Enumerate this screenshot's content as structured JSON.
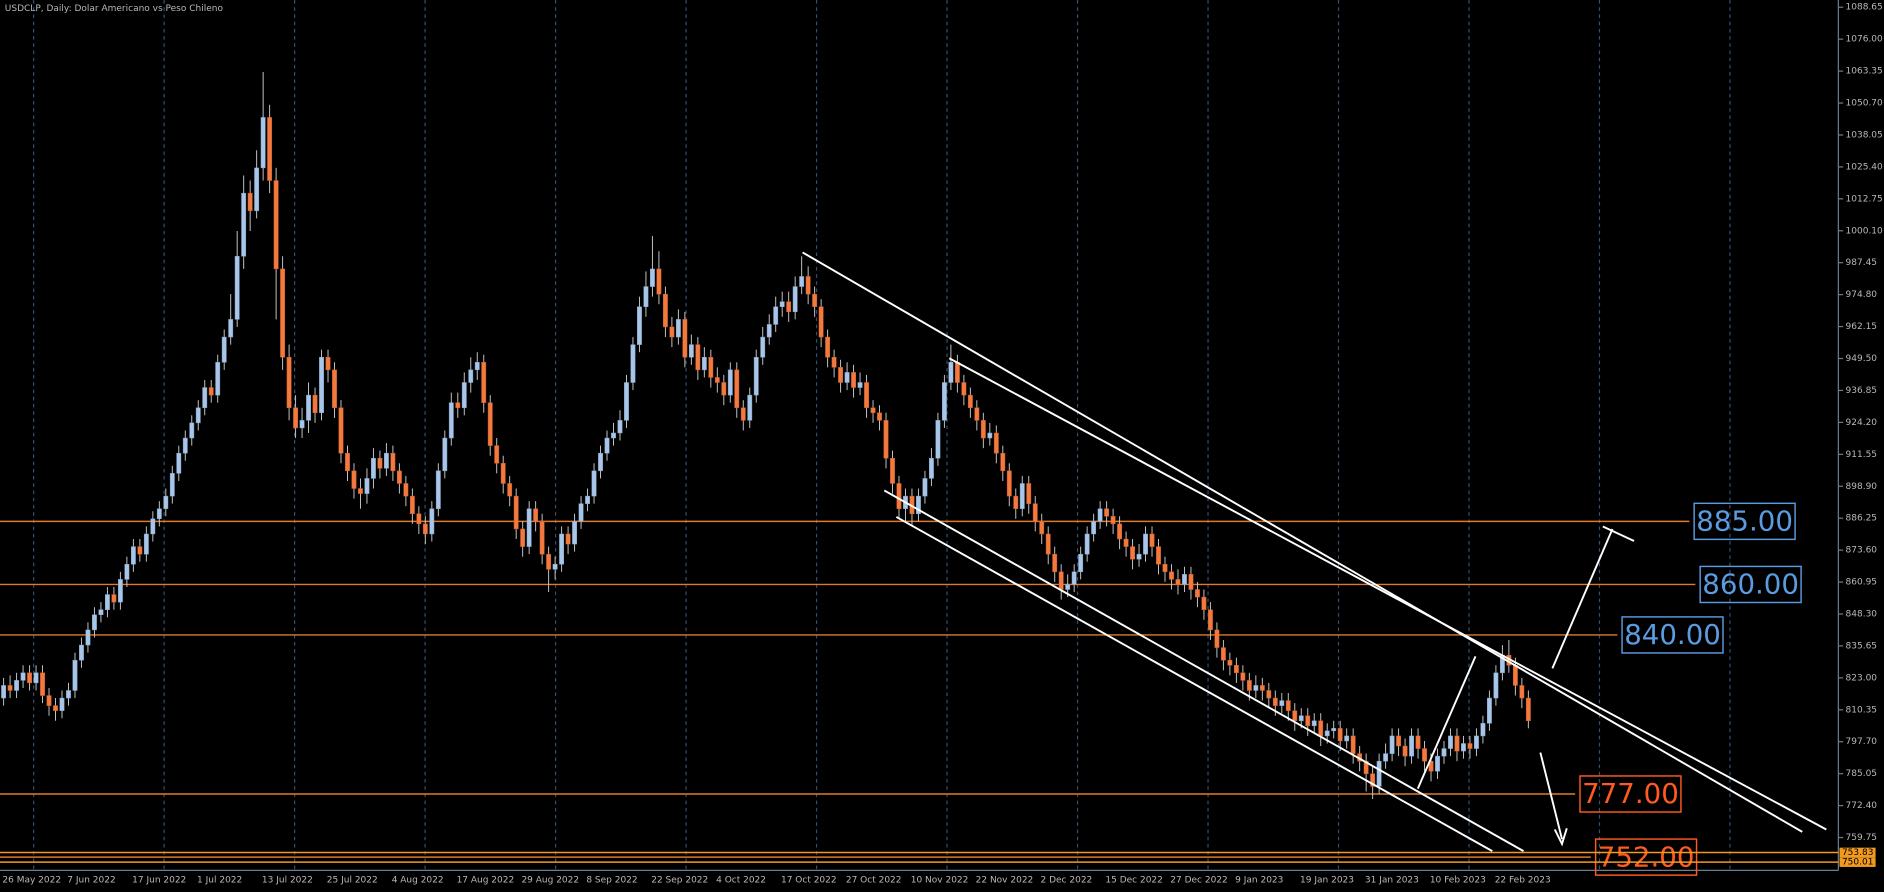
{
  "chart_data": {
    "type": "candlestick",
    "title": "USDCLP, Daily:  Dolar Americano vs Peso Chileno",
    "x_labels": [
      "26 May 2022",
      "7 Jun 2022",
      "17 Jun 2022",
      "1 Jul 2022",
      "13 Jul 2022",
      "25 Jul 2022",
      "4 Aug 2022",
      "17 Aug 2022",
      "29 Aug 2022",
      "8 Sep 2022",
      "22 Sep 2022",
      "4 Oct 2022",
      "17 Oct 2022",
      "27 Oct 2022",
      "10 Nov 2022",
      "22 Nov 2022",
      "2 Dec 2022",
      "15 Dec 2022",
      "27 Dec 2022",
      "9 Jan 2023",
      "19 Jan 2023",
      "31 Jan 2023",
      "10 Feb 2023",
      "22 Feb 2023"
    ],
    "candles": [
      [
        815,
        823,
        812,
        820
      ],
      [
        820,
        824,
        815,
        818
      ],
      [
        818,
        825,
        815,
        822
      ],
      [
        822,
        828,
        819,
        825
      ],
      [
        825,
        828,
        818,
        821
      ],
      [
        821,
        828,
        818,
        825
      ],
      [
        825,
        828,
        813,
        816
      ],
      [
        816,
        819,
        808,
        812
      ],
      [
        812,
        815,
        806,
        810
      ],
      [
        810,
        818,
        807,
        815
      ],
      [
        815,
        821,
        812,
        818
      ],
      [
        818,
        833,
        815,
        830
      ],
      [
        830,
        839,
        827,
        836
      ],
      [
        836,
        845,
        833,
        842
      ],
      [
        842,
        851,
        839,
        848
      ],
      [
        848,
        853,
        845,
        850
      ],
      [
        850,
        859,
        847,
        856
      ],
      [
        856,
        859,
        850,
        853
      ],
      [
        853,
        865,
        850,
        862
      ],
      [
        862,
        871,
        859,
        868
      ],
      [
        868,
        878,
        865,
        875
      ],
      [
        875,
        878,
        869,
        872
      ],
      [
        872,
        883,
        869,
        880
      ],
      [
        880,
        889,
        877,
        886
      ],
      [
        886,
        893,
        883,
        890
      ],
      [
        890,
        898,
        887,
        895
      ],
      [
        895,
        907,
        892,
        904
      ],
      [
        904,
        915,
        901,
        912
      ],
      [
        912,
        921,
        909,
        918
      ],
      [
        918,
        927,
        915,
        924
      ],
      [
        924,
        933,
        921,
        930
      ],
      [
        930,
        941,
        927,
        938
      ],
      [
        938,
        941,
        932,
        935
      ],
      [
        935,
        951,
        932,
        948
      ],
      [
        948,
        961,
        945,
        958
      ],
      [
        958,
        975,
        955,
        965
      ],
      [
        965,
        1000,
        962,
        990
      ],
      [
        990,
        1022,
        985,
        1015
      ],
      [
        1015,
        1020,
        1000,
        1008
      ],
      [
        1008,
        1032,
        1005,
        1025
      ],
      [
        1025,
        1063,
        1020,
        1045
      ],
      [
        1045,
        1050,
        1015,
        1020
      ],
      [
        1020,
        1025,
        965,
        985
      ],
      [
        985,
        990,
        945,
        950
      ],
      [
        950,
        955,
        925,
        930
      ],
      [
        930,
        935,
        918,
        922
      ],
      [
        922,
        930,
        918,
        925
      ],
      [
        925,
        940,
        920,
        935
      ],
      [
        935,
        938,
        924,
        928
      ],
      [
        928,
        953,
        925,
        950
      ],
      [
        950,
        953,
        940,
        945
      ],
      [
        945,
        948,
        926,
        930
      ],
      [
        930,
        933,
        908,
        912
      ],
      [
        912,
        915,
        901,
        905
      ],
      [
        905,
        908,
        894,
        898
      ],
      [
        898,
        902,
        890,
        896
      ],
      [
        896,
        906,
        892,
        902
      ],
      [
        902,
        914,
        898,
        910
      ],
      [
        910,
        913,
        902,
        906
      ],
      [
        906,
        916,
        903,
        912
      ],
      [
        912,
        915,
        901,
        905
      ],
      [
        905,
        908,
        896,
        900
      ],
      [
        900,
        903,
        891,
        895
      ],
      [
        895,
        898,
        884,
        888
      ],
      [
        888,
        891,
        880,
        884
      ],
      [
        884,
        887,
        876,
        880
      ],
      [
        880,
        893,
        877,
        890
      ],
      [
        890,
        908,
        887,
        905
      ],
      [
        905,
        921,
        902,
        918
      ],
      [
        918,
        936,
        915,
        932
      ],
      [
        932,
        936,
        926,
        930
      ],
      [
        930,
        944,
        927,
        940
      ],
      [
        940,
        950,
        936,
        945
      ],
      [
        945,
        952,
        941,
        948
      ],
      [
        948,
        951,
        928,
        932
      ],
      [
        932,
        935,
        911,
        915
      ],
      [
        915,
        918,
        904,
        908
      ],
      [
        908,
        911,
        896,
        900
      ],
      [
        900,
        903,
        891,
        895
      ],
      [
        895,
        898,
        878,
        882
      ],
      [
        882,
        885,
        871,
        875
      ],
      [
        875,
        893,
        872,
        890
      ],
      [
        890,
        893,
        881,
        885
      ],
      [
        885,
        888,
        868,
        872
      ],
      [
        872,
        875,
        857,
        866
      ],
      [
        866,
        871,
        862,
        868
      ],
      [
        868,
        883,
        865,
        880
      ],
      [
        880,
        883,
        872,
        876
      ],
      [
        876,
        888,
        873,
        885
      ],
      [
        885,
        895,
        882,
        892
      ],
      [
        892,
        898,
        889,
        895
      ],
      [
        895,
        908,
        892,
        905
      ],
      [
        905,
        915,
        902,
        912
      ],
      [
        912,
        921,
        909,
        918
      ],
      [
        918,
        924,
        915,
        920
      ],
      [
        920,
        929,
        917,
        925
      ],
      [
        925,
        943,
        922,
        940
      ],
      [
        940,
        958,
        937,
        955
      ],
      [
        955,
        974,
        952,
        970
      ],
      [
        970,
        984,
        966,
        978
      ],
      [
        978,
        998,
        974,
        985
      ],
      [
        985,
        992,
        971,
        975
      ],
      [
        975,
        978,
        958,
        962
      ],
      [
        962,
        966,
        954,
        958
      ],
      [
        958,
        969,
        955,
        965
      ],
      [
        965,
        968,
        946,
        950
      ],
      [
        950,
        959,
        947,
        955
      ],
      [
        955,
        958,
        941,
        945
      ],
      [
        945,
        954,
        942,
        950
      ],
      [
        950,
        953,
        938,
        942
      ],
      [
        942,
        946,
        936,
        940
      ],
      [
        940,
        943,
        931,
        935
      ],
      [
        935,
        948,
        932,
        945
      ],
      [
        945,
        948,
        926,
        930
      ],
      [
        930,
        933,
        921,
        925
      ],
      [
        925,
        938,
        922,
        935
      ],
      [
        935,
        953,
        932,
        950
      ],
      [
        950,
        962,
        947,
        958
      ],
      [
        958,
        967,
        955,
        963
      ],
      [
        963,
        974,
        960,
        970
      ],
      [
        970,
        976,
        966,
        972
      ],
      [
        972,
        976,
        964,
        968
      ],
      [
        968,
        982,
        965,
        978
      ],
      [
        978,
        990,
        975,
        982
      ],
      [
        982,
        986,
        971,
        975
      ],
      [
        975,
        978,
        966,
        970
      ],
      [
        970,
        973,
        954,
        958
      ],
      [
        958,
        961,
        946,
        950
      ],
      [
        950,
        953,
        942,
        946
      ],
      [
        946,
        949,
        936,
        940
      ],
      [
        940,
        948,
        937,
        944
      ],
      [
        944,
        947,
        934,
        938
      ],
      [
        938,
        944,
        935,
        940
      ],
      [
        940,
        943,
        926,
        930
      ],
      [
        930,
        933,
        924,
        928
      ],
      [
        928,
        931,
        921,
        925
      ],
      [
        925,
        928,
        906,
        910
      ],
      [
        910,
        913,
        896,
        900
      ],
      [
        900,
        903,
        886,
        890
      ],
      [
        890,
        898,
        885,
        895
      ],
      [
        895,
        898,
        883,
        888
      ],
      [
        888,
        898,
        885,
        895
      ],
      [
        895,
        905,
        892,
        902
      ],
      [
        902,
        914,
        899,
        910
      ],
      [
        910,
        928,
        907,
        925
      ],
      [
        925,
        943,
        922,
        940
      ],
      [
        940,
        955,
        937,
        948
      ],
      [
        948,
        951,
        936,
        940
      ],
      [
        940,
        943,
        931,
        935
      ],
      [
        935,
        938,
        926,
        930
      ],
      [
        930,
        933,
        921,
        925
      ],
      [
        925,
        928,
        914,
        918
      ],
      [
        918,
        924,
        915,
        920
      ],
      [
        920,
        923,
        908,
        912
      ],
      [
        912,
        915,
        901,
        905
      ],
      [
        905,
        908,
        891,
        895
      ],
      [
        895,
        898,
        886,
        890
      ],
      [
        890,
        903,
        887,
        900
      ],
      [
        900,
        903,
        888,
        892
      ],
      [
        892,
        895,
        881,
        885
      ],
      [
        885,
        888,
        876,
        880
      ],
      [
        880,
        883,
        868,
        872
      ],
      [
        872,
        875,
        861,
        865
      ],
      [
        865,
        868,
        854,
        858
      ],
      [
        858,
        864,
        855,
        860
      ],
      [
        860,
        868,
        857,
        865
      ],
      [
        865,
        875,
        862,
        872
      ],
      [
        872,
        883,
        869,
        880
      ],
      [
        880,
        888,
        877,
        885
      ],
      [
        885,
        893,
        882,
        890
      ],
      [
        890,
        893,
        883,
        887
      ],
      [
        887,
        890,
        880,
        884
      ],
      [
        884,
        887,
        874,
        878
      ],
      [
        878,
        881,
        871,
        875
      ],
      [
        875,
        878,
        866,
        870
      ],
      [
        870,
        876,
        867,
        872
      ],
      [
        872,
        883,
        869,
        880
      ],
      [
        880,
        883,
        871,
        875
      ],
      [
        875,
        878,
        864,
        868
      ],
      [
        868,
        871,
        861,
        865
      ],
      [
        865,
        868,
        858,
        862
      ],
      [
        862,
        866,
        856,
        860
      ],
      [
        860,
        867,
        857,
        864
      ],
      [
        864,
        867,
        854,
        858
      ],
      [
        858,
        861,
        851,
        855
      ],
      [
        855,
        858,
        846,
        850
      ],
      [
        850,
        853,
        838,
        842
      ],
      [
        842,
        845,
        831,
        835
      ],
      [
        835,
        838,
        826,
        830
      ],
      [
        830,
        833,
        824,
        828
      ],
      [
        828,
        831,
        821,
        825
      ],
      [
        825,
        828,
        818,
        822
      ],
      [
        822,
        825,
        814,
        818
      ],
      [
        818,
        824,
        815,
        820
      ],
      [
        820,
        823,
        814,
        818
      ],
      [
        818,
        821,
        811,
        815
      ],
      [
        815,
        818,
        808,
        812
      ],
      [
        812,
        817,
        809,
        814
      ],
      [
        814,
        817,
        806,
        810
      ],
      [
        810,
        813,
        802,
        806
      ],
      [
        806,
        811,
        803,
        808
      ],
      [
        808,
        811,
        800,
        804
      ],
      [
        804,
        809,
        801,
        806
      ],
      [
        806,
        809,
        796,
        800
      ],
      [
        800,
        805,
        797,
        802
      ],
      [
        802,
        806,
        799,
        803
      ],
      [
        803,
        806,
        794,
        798
      ],
      [
        798,
        803,
        795,
        800
      ],
      [
        800,
        803,
        789,
        793
      ],
      [
        793,
        796,
        786,
        790
      ],
      [
        790,
        793,
        778,
        785
      ],
      [
        785,
        788,
        775,
        780
      ],
      [
        780,
        793,
        777,
        790
      ],
      [
        790,
        797,
        787,
        793
      ],
      [
        793,
        803,
        790,
        800
      ],
      [
        800,
        803,
        792,
        796
      ],
      [
        796,
        799,
        788,
        792
      ],
      [
        792,
        803,
        789,
        800
      ],
      [
        800,
        803,
        791,
        795
      ],
      [
        795,
        798,
        786,
        790
      ],
      [
        790,
        793,
        782,
        786
      ],
      [
        786,
        795,
        783,
        792
      ],
      [
        792,
        798,
        789,
        795
      ],
      [
        795,
        803,
        792,
        800
      ],
      [
        800,
        803,
        790,
        794
      ],
      [
        794,
        800,
        791,
        797
      ],
      [
        797,
        800,
        791,
        795
      ],
      [
        795,
        803,
        792,
        800
      ],
      [
        800,
        808,
        797,
        805
      ],
      [
        805,
        818,
        802,
        815
      ],
      [
        815,
        828,
        812,
        825
      ],
      [
        825,
        836,
        822,
        832
      ],
      [
        832,
        838,
        825,
        828
      ],
      [
        828,
        831,
        816,
        820
      ],
      [
        820,
        823,
        811,
        815
      ],
      [
        815,
        818,
        803,
        806
      ]
    ],
    "up_color": "#a9c6e8",
    "down_color": "#f07a40",
    "ylim": [
      746.75,
      1091.51
    ],
    "yticks": [
      1088.65,
      {
        "value": 1076,
        "label": "1076.00"
      },
      1063.35,
      {
        "value": 1050.7,
        "label": "1050.70"
      },
      1038.05,
      {
        "value": 1025.4,
        "label": "1025.40"
      },
      1012.75,
      {
        "value": 1000.1,
        "label": "1000.10"
      },
      987.45,
      {
        "value": 974.8,
        "label": "974.80"
      },
      962.15,
      {
        "value": 949.5,
        "label": "949.50"
      },
      936.85,
      {
        "value": 924.2,
        "label": "924.20"
      },
      911.55,
      {
        "value": 898.9,
        "label": "898.90"
      },
      886.25,
      {
        "value": 873.6,
        "label": "873.60"
      },
      860.95,
      {
        "value": 848.3,
        "label": "848.30"
      },
      835.65,
      {
        "value": 823,
        "label": "823.00"
      },
      810.35,
      {
        "value": 797.7,
        "label": "797.70"
      },
      785.05,
      {
        "value": 772.4,
        "label": "772.40"
      },
      759.75
    ],
    "levels": [
      {
        "value": 885,
        "label": "885.00",
        "color": "#5b9be0"
      },
      {
        "value": 860,
        "label": "860.00",
        "color": "#5b9be0"
      },
      {
        "value": 840,
        "label": "840.00",
        "color": "#5b9be0"
      },
      {
        "value": 777,
        "label": "777.00",
        "color": "#ff5a1f"
      },
      {
        "value": 752,
        "label": "752.00",
        "color": "#ff5a1f"
      }
    ],
    "price_marks": [
      753.83,
      750.01
    ],
    "price_mark_color": "#f29a20"
  }
}
